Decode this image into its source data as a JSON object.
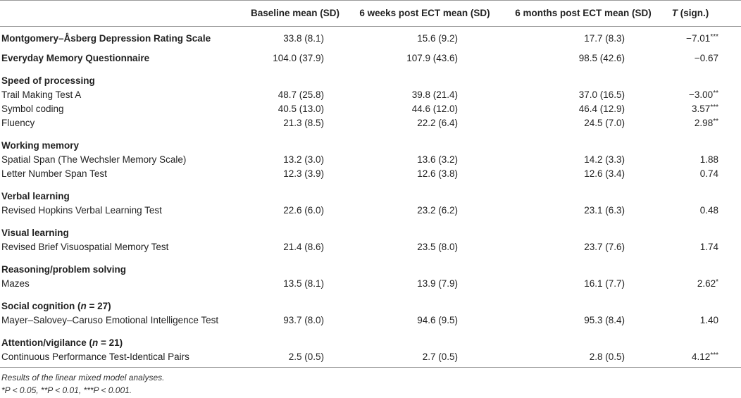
{
  "table": {
    "headers": {
      "measure": "",
      "baseline": "Baseline mean (SD)",
      "weeks6": "6 weeks post ECT mean (SD)",
      "months6": "6 months post ECT mean (SD)",
      "t_letter": "T",
      "t_rest": " (sign.)"
    },
    "rows": [
      {
        "label": "Montgomery–Åsberg Depression Rating Scale",
        "bold": true,
        "baseline": "33.8 (8.1)",
        "weeks6": "15.6 (9.2)",
        "months6": "17.7 (8.3)",
        "t": "−7.01",
        "sig": "***"
      },
      {
        "label": "Everyday Memory Questionnaire",
        "bold": true,
        "baseline": "104.0 (37.9)",
        "weeks6": "107.9 (43.6)",
        "months6": "98.5 (42.6)",
        "t": "−0.67",
        "sig": ""
      },
      {
        "group": "Speed of processing"
      },
      {
        "label": "Trail Making Test A",
        "baseline": "48.7 (25.8)",
        "weeks6": "39.8 (21.4)",
        "months6": "37.0 (16.5)",
        "t": "−3.00",
        "sig": "**"
      },
      {
        "label": "Symbol coding",
        "baseline": "40.5 (13.0)",
        "weeks6": "44.6 (12.0)",
        "months6": "46.4 (12.9)",
        "t": "3.57",
        "sig": "***"
      },
      {
        "label": "Fluency",
        "baseline": "21.3 (8.5)",
        "weeks6": "22.2 (6.4)",
        "months6": "24.5 (7.0)",
        "t": "2.98",
        "sig": "**"
      },
      {
        "group": "Working memory"
      },
      {
        "label": "Spatial Span (The Wechsler Memory Scale)",
        "baseline": "13.2 (3.0)",
        "weeks6": "13.6 (3.2)",
        "months6": "14.2 (3.3)",
        "t": "1.88",
        "sig": ""
      },
      {
        "label": "Letter Number Span Test",
        "baseline": "12.3 (3.9)",
        "weeks6": "12.6 (3.8)",
        "months6": "12.6 (3.4)",
        "t": "0.74",
        "sig": ""
      },
      {
        "group": "Verbal learning"
      },
      {
        "label": "Revised Hopkins Verbal Learning Test",
        "baseline": "22.6 (6.0)",
        "weeks6": "23.2 (6.2)",
        "months6": "23.1 (6.3)",
        "t": "0.48",
        "sig": ""
      },
      {
        "group": "Visual learning"
      },
      {
        "label": "Revised Brief Visuospatial Memory Test",
        "baseline": "21.4 (8.6)",
        "weeks6": "23.5 (8.0)",
        "months6": "23.7 (7.6)",
        "t": "1.74",
        "sig": ""
      },
      {
        "group": "Reasoning/problem solving"
      },
      {
        "label": "Mazes",
        "baseline": "13.5 (8.1)",
        "weeks6": "13.9 (7.9)",
        "months6": "16.1 (7.7)",
        "t": "2.62",
        "sig": "*"
      },
      {
        "group": "Social cognition (",
        "group_n": "n",
        "group_tail": " = 27)"
      },
      {
        "label": "Mayer–Salovey–Caruso Emotional Intelligence Test",
        "baseline": "93.7 (8.0)",
        "weeks6": "94.6 (9.5)",
        "months6": "95.3 (8.4)",
        "t": "1.40",
        "sig": ""
      },
      {
        "group": "Attention/vigilance (",
        "group_n": "n",
        "group_tail": " = 21)"
      },
      {
        "label": "Continuous Performance Test-Identical Pairs",
        "baseline": "2.5 (0.5)",
        "weeks6": "2.7 (0.5)",
        "months6": "2.8 (0.5)",
        "t": "4.12",
        "sig": "***"
      }
    ]
  },
  "footnotes": {
    "line1": "Results of the linear mixed model analyses.",
    "line2": "*P < 0.05, **P < 0.01, ***P < 0.001."
  },
  "colors": {
    "rule": "#9a9a9a",
    "text": "#222222"
  }
}
